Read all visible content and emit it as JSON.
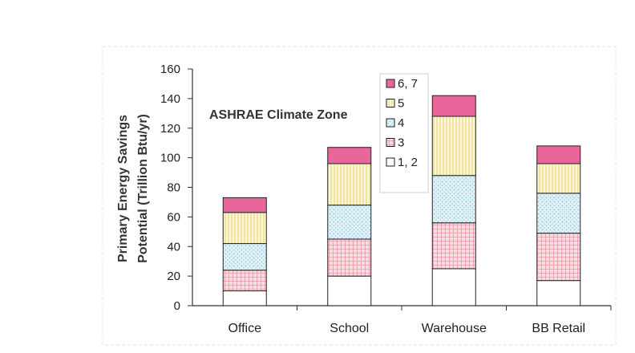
{
  "chart_data": {
    "type": "bar",
    "stacked": true,
    "categories": [
      "Office",
      "School",
      "Warehouse",
      "BB Retail"
    ],
    "ylabel": "Primary Energy Savings Potential (Trillion Btu/yr)",
    "ylabel_lines": [
      "Primary Energy Savings",
      "Potential (Trillion Btu/yr)"
    ],
    "annotation": "ASHRAE Climate Zone",
    "ylim": [
      0,
      160
    ],
    "yticks": [
      0,
      20,
      40,
      60,
      80,
      100,
      120,
      140,
      160
    ],
    "grid": false,
    "legend_position": "top-center",
    "legend_order": [
      "6, 7",
      "5",
      "4",
      "3",
      "1, 2"
    ],
    "series": [
      {
        "name": "1, 2",
        "values": [
          10,
          20,
          25,
          17
        ],
        "color": "#ffffff",
        "pattern": "plain"
      },
      {
        "name": "3",
        "values": [
          14,
          25,
          31,
          32
        ],
        "color": "#e8788a",
        "pattern": "grid"
      },
      {
        "name": "4",
        "values": [
          18,
          23,
          32,
          27
        ],
        "color": "#8ec8dc",
        "pattern": "dots"
      },
      {
        "name": "5",
        "values": [
          21,
          28,
          40,
          20
        ],
        "color": "#e8d980",
        "pattern": "vlines"
      },
      {
        "name": "6, 7",
        "values": [
          10,
          11,
          14,
          12
        ],
        "color": "#e8669a",
        "pattern": "solid"
      }
    ]
  }
}
